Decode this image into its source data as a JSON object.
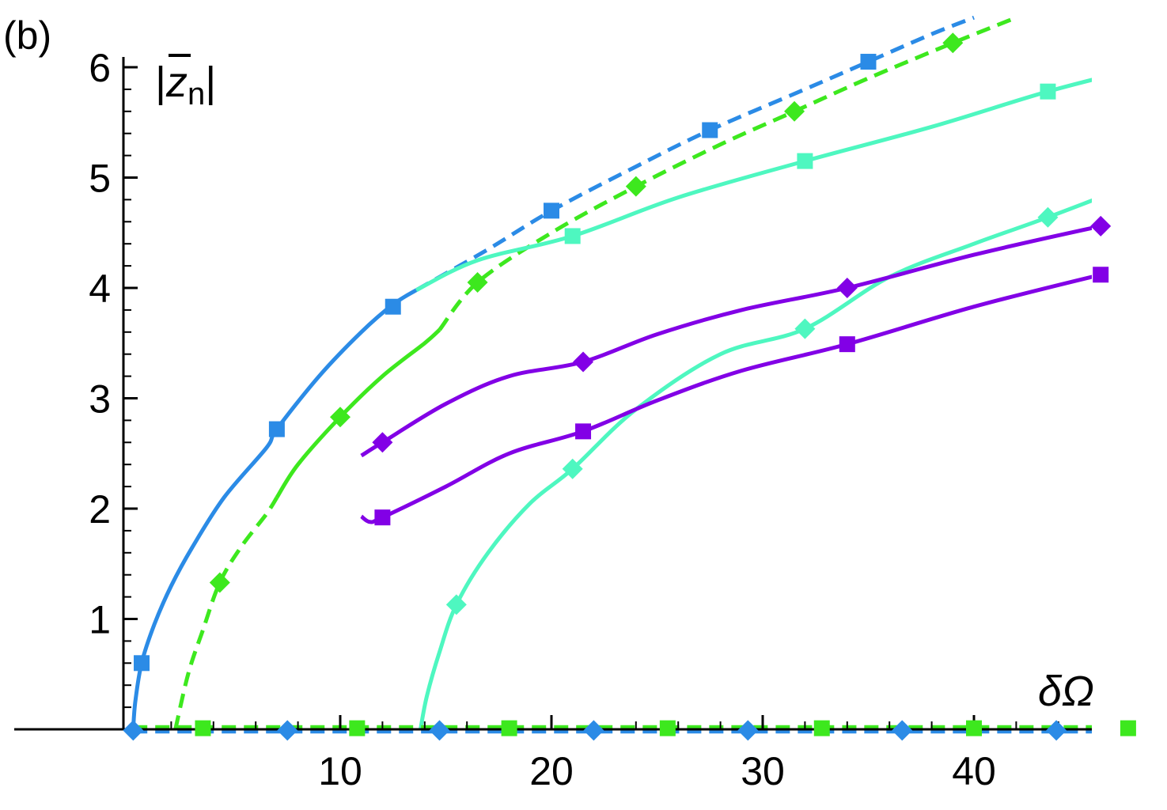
{
  "chart_data": {
    "type": "line",
    "panel_label": "(b)",
    "xlabel": "δΩ",
    "ylabel_prefix": "|",
    "ylabel_var": "z",
    "ylabel_sub": "n",
    "ylabel_suffix": "|",
    "xlim": [
      0,
      45
    ],
    "ylim": [
      0,
      6.1
    ],
    "x_ticks": [
      10,
      20,
      30,
      40
    ],
    "y_ticks": [
      1,
      2,
      3,
      4,
      5,
      6
    ],
    "x_tick_labels": [
      "10",
      "20",
      "30",
      "40"
    ],
    "y_tick_labels": [
      "1",
      "2",
      "3",
      "4",
      "5",
      "6"
    ],
    "grid": false,
    "legend": "none",
    "series": [
      {
        "color": "#2b8be6",
        "style": "solid",
        "marker": "square",
        "points": [
          [
            0.2,
            0
          ],
          [
            0.3,
            0.25
          ],
          [
            0.6,
            0.6
          ],
          [
            1.2,
            0.95
          ],
          [
            2.0,
            1.3
          ],
          [
            3.0,
            1.65
          ],
          [
            4.5,
            2.1
          ],
          [
            6.5,
            2.55
          ],
          [
            7.0,
            2.72
          ],
          [
            9.0,
            3.2
          ],
          [
            11.0,
            3.6
          ],
          [
            12.5,
            3.85
          ],
          [
            13.6,
            3.98
          ]
        ],
        "marker_points": [
          [
            0.6,
            0.6
          ],
          [
            7.0,
            2.72
          ],
          [
            12.5,
            3.83
          ]
        ]
      },
      {
        "color": "#2b8be6",
        "style": "dashed",
        "marker": "square",
        "points": [
          [
            13.6,
            3.98
          ],
          [
            17.0,
            4.35
          ],
          [
            20.0,
            4.7
          ],
          [
            24.0,
            5.1
          ],
          [
            27.5,
            5.43
          ],
          [
            32.0,
            5.8
          ],
          [
            35.0,
            6.05
          ],
          [
            38.0,
            6.3
          ],
          [
            40.0,
            6.45
          ]
        ],
        "marker_points": [
          [
            20.0,
            4.7
          ],
          [
            27.5,
            5.43
          ],
          [
            35.0,
            6.05
          ]
        ]
      },
      {
        "color": "#3de81e",
        "style": "dashed",
        "marker": "diamond",
        "points": [
          [
            2.2,
            0
          ],
          [
            2.8,
            0.5
          ],
          [
            3.5,
            0.9
          ],
          [
            4.3,
            1.33
          ],
          [
            5.3,
            1.65
          ],
          [
            6.5,
            1.95
          ],
          [
            7.0,
            2.1
          ]
        ],
        "marker_points": [
          [
            4.3,
            1.33
          ]
        ]
      },
      {
        "color": "#3de81e",
        "style": "solid",
        "marker": "diamond",
        "points": [
          [
            7.0,
            2.1
          ],
          [
            8.0,
            2.4
          ],
          [
            10.0,
            2.83
          ],
          [
            12.0,
            3.2
          ],
          [
            14.0,
            3.5
          ],
          [
            14.7,
            3.62
          ]
        ],
        "marker_points": [
          [
            10.0,
            2.83
          ]
        ]
      },
      {
        "color": "#3de81e",
        "style": "dashed",
        "marker": "diamond",
        "points": [
          [
            14.7,
            3.62
          ],
          [
            16.5,
            4.05
          ],
          [
            20.0,
            4.5
          ],
          [
            24.0,
            4.92
          ],
          [
            28.0,
            5.3
          ],
          [
            31.5,
            5.6
          ],
          [
            35.0,
            5.9
          ],
          [
            39.0,
            6.22
          ],
          [
            42.0,
            6.45
          ]
        ],
        "marker_points": [
          [
            16.5,
            4.05
          ],
          [
            24.0,
            4.92
          ],
          [
            31.5,
            5.6
          ],
          [
            39.0,
            6.22
          ]
        ]
      },
      {
        "color": "#4ef7c0",
        "style": "solid",
        "marker": "square",
        "points": [
          [
            13.6,
            3.98
          ],
          [
            16.5,
            4.25
          ],
          [
            21.0,
            4.47
          ],
          [
            26.0,
            4.82
          ],
          [
            32.0,
            5.15
          ],
          [
            38.0,
            5.46
          ],
          [
            43.5,
            5.78
          ],
          [
            48.0,
            6.0
          ]
        ],
        "marker_points": [
          [
            21.0,
            4.47
          ],
          [
            32.0,
            5.15
          ],
          [
            43.5,
            5.78
          ]
        ]
      },
      {
        "color": "#4ef7c0",
        "style": "solid",
        "marker": "diamond",
        "points": [
          [
            13.8,
            0
          ],
          [
            14.1,
            0.3
          ],
          [
            14.7,
            0.7
          ],
          [
            15.5,
            1.13
          ],
          [
            17.0,
            1.6
          ],
          [
            19.0,
            2.05
          ],
          [
            21.0,
            2.36
          ],
          [
            24.0,
            2.9
          ],
          [
            28.0,
            3.4
          ],
          [
            32.0,
            3.63
          ],
          [
            36.0,
            4.1
          ],
          [
            40.0,
            4.4
          ],
          [
            43.5,
            4.64
          ],
          [
            48.0,
            4.97
          ]
        ],
        "marker_points": [
          [
            15.5,
            1.13
          ],
          [
            21.0,
            2.36
          ],
          [
            32.0,
            3.63
          ],
          [
            43.5,
            4.64
          ]
        ]
      },
      {
        "color": "#8200e6",
        "style": "solid",
        "marker": "diamond",
        "points": [
          [
            11.0,
            2.48
          ],
          [
            12.0,
            2.6
          ],
          [
            15.0,
            2.95
          ],
          [
            18.0,
            3.2
          ],
          [
            21.5,
            3.33
          ],
          [
            25.0,
            3.58
          ],
          [
            29.0,
            3.8
          ],
          [
            34.0,
            4.0
          ],
          [
            40.0,
            4.3
          ],
          [
            46.0,
            4.56
          ],
          [
            48.0,
            4.63
          ]
        ],
        "marker_points": [
          [
            12.0,
            2.6
          ],
          [
            21.5,
            3.33
          ],
          [
            34.0,
            4.0
          ],
          [
            46.0,
            4.56
          ]
        ]
      },
      {
        "color": "#8200e6",
        "style": "solid",
        "marker": "square",
        "points": [
          [
            11.0,
            1.93
          ],
          [
            11.4,
            1.88
          ],
          [
            12.0,
            1.92
          ],
          [
            15.0,
            2.2
          ],
          [
            18.0,
            2.5
          ],
          [
            21.5,
            2.7
          ],
          [
            25.0,
            2.98
          ],
          [
            29.0,
            3.25
          ],
          [
            34.0,
            3.49
          ],
          [
            40.0,
            3.83
          ],
          [
            46.0,
            4.12
          ],
          [
            48.0,
            4.2
          ]
        ],
        "marker_points": [
          [
            12.0,
            1.92
          ],
          [
            21.5,
            2.7
          ],
          [
            34.0,
            3.49
          ],
          [
            46.0,
            4.12
          ]
        ]
      },
      {
        "color": "#3de81e",
        "style": "dashed",
        "marker": "square",
        "points": [
          [
            0.2,
            0.02
          ],
          [
            48.0,
            0.02
          ]
        ],
        "marker_points": [
          [
            3.5,
            0.01
          ],
          [
            10.8,
            0.01
          ],
          [
            18.0,
            0.01
          ],
          [
            25.5,
            0.01
          ],
          [
            32.8,
            0.01
          ],
          [
            40.0,
            0.01
          ],
          [
            47.3,
            0.01
          ]
        ]
      },
      {
        "color": "#2b8be6",
        "style": "dashed",
        "marker": "diamond",
        "points": [
          [
            0.2,
            -0.02
          ],
          [
            48.0,
            -0.02
          ]
        ],
        "marker_points": [
          [
            0.2,
            -0.01
          ],
          [
            7.5,
            -0.01
          ],
          [
            14.7,
            -0.01
          ],
          [
            22.0,
            -0.01
          ],
          [
            29.3,
            -0.01
          ],
          [
            36.6,
            -0.01
          ],
          [
            43.9,
            -0.01
          ]
        ]
      }
    ]
  }
}
